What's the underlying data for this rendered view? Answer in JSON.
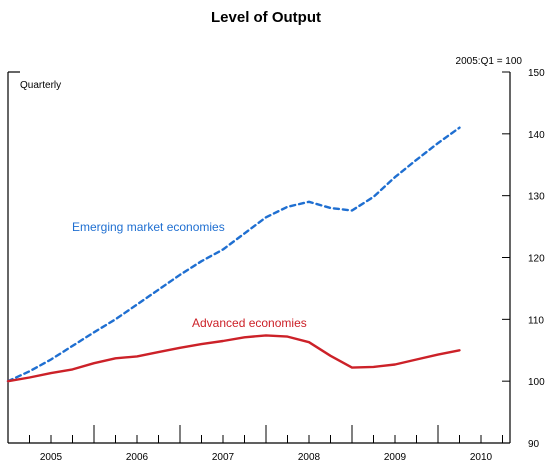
{
  "chart_data": {
    "type": "line",
    "title": "Level of Output",
    "subtitle_left": "Quarterly",
    "unit_note": "2005:Q1 = 100",
    "xlabel": "",
    "ylabel": "",
    "ylim": [
      90,
      150
    ],
    "y_ticks": [
      90,
      100,
      110,
      120,
      130,
      140,
      150
    ],
    "x_years": [
      "2005",
      "2006",
      "2007",
      "2008",
      "2009",
      "2010"
    ],
    "x_quarters": [
      "2005Q1",
      "2005Q2",
      "2005Q3",
      "2005Q4",
      "2006Q1",
      "2006Q2",
      "2006Q3",
      "2006Q4",
      "2007Q1",
      "2007Q2",
      "2007Q3",
      "2007Q4",
      "2008Q1",
      "2008Q2",
      "2008Q3",
      "2008Q4",
      "2009Q1",
      "2009Q2",
      "2009Q3",
      "2009Q4",
      "2010Q1",
      "2010Q2"
    ],
    "series": [
      {
        "name": "Emerging market economies",
        "color": "#1f6fd1",
        "style": "dashed",
        "values": [
          100.0,
          101.6,
          103.5,
          105.7,
          107.9,
          110.0,
          112.4,
          114.8,
          117.2,
          119.4,
          121.3,
          123.9,
          126.5,
          128.2,
          129.0,
          128.0,
          127.6,
          129.8,
          133.0,
          135.8,
          138.5,
          141.0
        ]
      },
      {
        "name": "Advanced economies",
        "color": "#cc2128",
        "style": "solid",
        "values": [
          100.0,
          100.6,
          101.3,
          101.9,
          102.9,
          103.7,
          104.0,
          104.7,
          105.4,
          106.0,
          106.5,
          107.1,
          107.4,
          107.2,
          106.3,
          104.1,
          102.2,
          102.3,
          102.7,
          103.5,
          104.3,
          105.0
        ]
      }
    ],
    "grid": false,
    "legend": "inline labels"
  },
  "colors": {
    "emerging": "#1f6fd1",
    "advanced": "#cc2128",
    "axis": "#000000"
  }
}
